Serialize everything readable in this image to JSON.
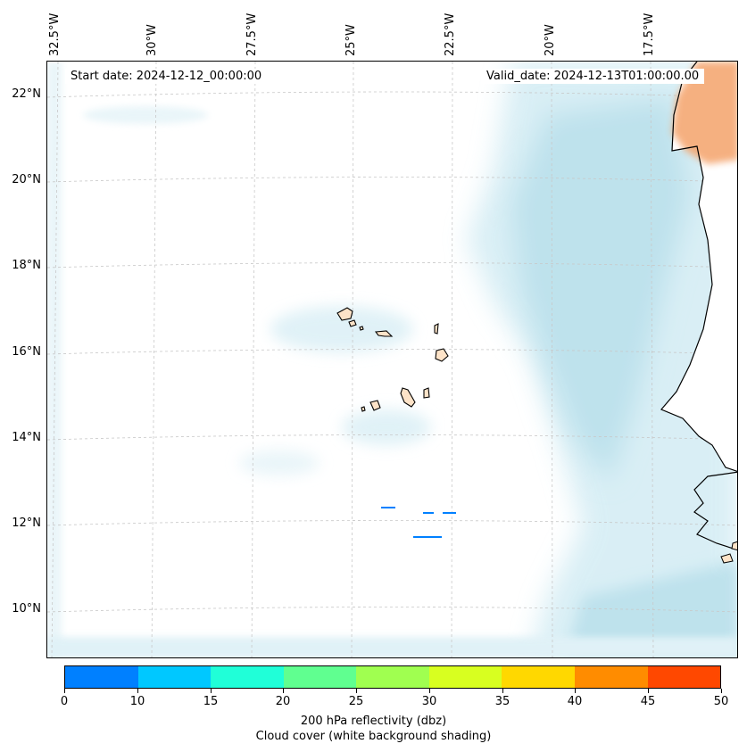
{
  "map": {
    "start_date": "Start date: 2024-12-12_00:00:00",
    "valid_date": "Valid_date: 2024-12-13T01:00:00.00",
    "longitude_labels": [
      "32.5°W",
      "30°W",
      "27.5°W",
      "25°W",
      "22.5°W",
      "20°W",
      "17.5°W"
    ],
    "latitude_labels": [
      "22°N",
      "20°N",
      "18°N",
      "16°N",
      "14°N",
      "12°N",
      "10°N"
    ],
    "land_color": "#f4a36a",
    "cloud_color": "#a8d8e6"
  },
  "colorbar": {
    "ticks": [
      "0",
      "10",
      "15",
      "20",
      "25",
      "30",
      "35",
      "40",
      "45",
      "50"
    ],
    "colors": [
      "#0080ff",
      "#00c8ff",
      "#20ffd8",
      "#60ff90",
      "#a0ff50",
      "#d8ff20",
      "#ffd800",
      "#ff8c00",
      "#ff4800"
    ],
    "label_line1": "200 hPa reflectivity (dbz)",
    "label_line2": "Cloud cover (white background shading)"
  }
}
